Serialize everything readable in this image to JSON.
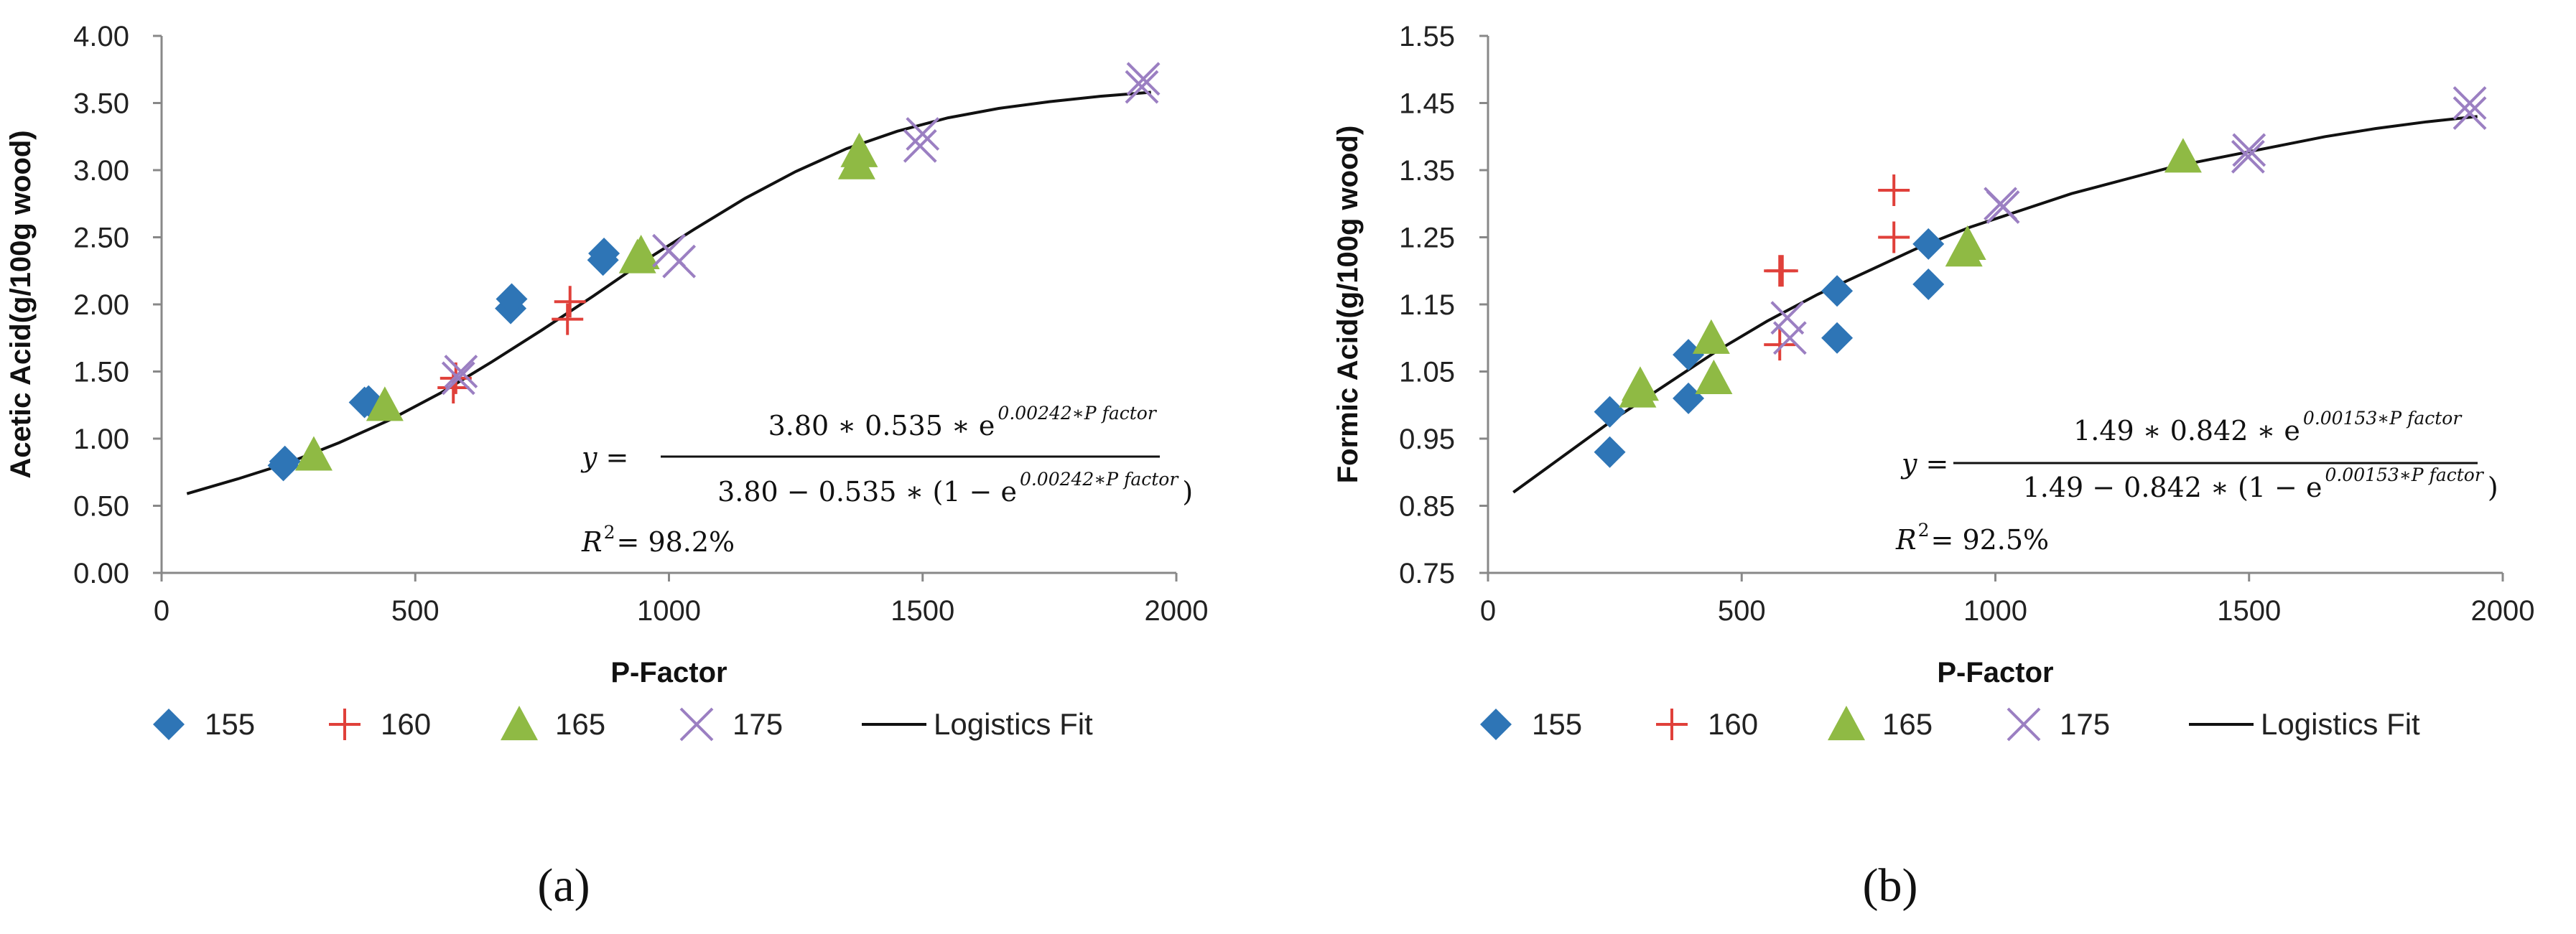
{
  "chart_data": [
    {
      "type": "scatter",
      "panel_label": "(a)",
      "xlabel": "P-Factor",
      "ylabel": "Acetic Acid(g/100g wood)",
      "xlim": [
        0,
        2000
      ],
      "ylim": [
        0,
        4
      ],
      "xticks": [
        0,
        500,
        1000,
        1500,
        2000
      ],
      "xtick_labels": [
        "0",
        "500",
        "1000",
        "1500",
        "2000"
      ],
      "yticks": [
        0,
        0.5,
        1,
        1.5,
        2,
        2.5,
        3,
        3.5,
        4
      ],
      "ytick_labels": [
        "0.00",
        "0.50",
        "1.00",
        "1.50",
        "2.00",
        "2.50",
        "3.00",
        "3.50",
        "4.00"
      ],
      "grid": false,
      "legend_position": "bottom",
      "series": [
        {
          "name": "155",
          "marker": "diamond",
          "color": "#2E75B6",
          "points": [
            [
              240,
              0.8
            ],
            [
              243,
              0.83
            ],
            [
              400,
              1.27
            ],
            [
              408,
              1.28
            ],
            [
              688,
              1.97
            ],
            [
              690,
              2.04
            ],
            [
              870,
              2.33
            ],
            [
              872,
              2.38
            ]
          ]
        },
        {
          "name": "160",
          "marker": "plus",
          "color": "#E0403A",
          "points": [
            [
              575,
              1.38
            ],
            [
              580,
              1.45
            ],
            [
              800,
              1.89
            ],
            [
              805,
              2.02
            ]
          ]
        },
        {
          "name": "165",
          "marker": "triangle",
          "color": "#8FBA44",
          "points": [
            [
              300,
              0.88
            ],
            [
              440,
              1.25
            ],
            [
              938,
              2.35
            ],
            [
              945,
              2.38
            ],
            [
              1370,
              3.05
            ],
            [
              1375,
              3.14
            ]
          ]
        },
        {
          "name": "175",
          "marker": "cross",
          "color": "#9B7FC2",
          "points": [
            [
              585,
              1.45
            ],
            [
              590,
              1.5
            ],
            [
              1000,
              2.4
            ],
            [
              1020,
              2.32
            ],
            [
              1495,
              3.18
            ],
            [
              1500,
              3.27
            ],
            [
              1932,
              3.62
            ],
            [
              1935,
              3.68
            ]
          ]
        }
      ],
      "fit": {
        "name": "Logistics Fit",
        "color": "#111111",
        "x": [
          50,
          150,
          250,
          350,
          450,
          550,
          650,
          750,
          850,
          950,
          1050,
          1150,
          1250,
          1350,
          1450,
          1550,
          1650,
          1750,
          1850,
          1950
        ],
        "y": [
          0.59,
          0.7,
          0.82,
          0.97,
          1.14,
          1.34,
          1.57,
          1.81,
          2.06,
          2.32,
          2.56,
          2.79,
          2.99,
          3.16,
          3.29,
          3.39,
          3.46,
          3.51,
          3.55,
          3.58
        ]
      },
      "equation": {
        "lhs": "y =",
        "numerator": "3.80 ∗ 0.535 ∗ e",
        "numerator_exp": "0.00242∗P factor",
        "denominator": "3.80 − 0.535 ∗ (1 − e",
        "denominator_exp": "0.00242∗P factor",
        "denominator_close": ")",
        "r2_label": "R",
        "r2_sup": "2",
        "r2_value": " = 98.2%"
      }
    },
    {
      "type": "scatter",
      "panel_label": "(b)",
      "xlabel": "P-Factor",
      "ylabel": "Formic Acid(g/100g wood)",
      "xlim": [
        0,
        2000
      ],
      "ylim": [
        0.75,
        1.55
      ],
      "xticks": [
        0,
        500,
        1000,
        1500,
        2000
      ],
      "xtick_labels": [
        "0",
        "500",
        "1000",
        "1500",
        "2000"
      ],
      "yticks": [
        0.75,
        0.85,
        0.95,
        1.05,
        1.15,
        1.25,
        1.35,
        1.45,
        1.55
      ],
      "ytick_labels": [
        "0.75",
        "0.85",
        "0.95",
        "1.05",
        "1.15",
        "1.25",
        "1.35",
        "1.45",
        "1.55"
      ],
      "grid": false,
      "legend_position": "bottom",
      "series": [
        {
          "name": "155",
          "marker": "diamond",
          "color": "#2E75B6",
          "points": [
            [
              240,
              0.99
            ],
            [
              240,
              0.93
            ],
            [
              395,
              1.075
            ],
            [
              395,
              1.01
            ],
            [
              688,
              1.17
            ],
            [
              688,
              1.1
            ],
            [
              868,
              1.24
            ],
            [
              868,
              1.18
            ]
          ]
        },
        {
          "name": "160",
          "marker": "plus",
          "color": "#E0403A",
          "points": [
            [
              575,
              1.2
            ],
            [
              580,
              1.2
            ],
            [
              575,
              1.09
            ],
            [
              800,
              1.32
            ],
            [
              800,
              1.25
            ]
          ]
        },
        {
          "name": "165",
          "marker": "triangle",
          "color": "#8FBA44",
          "points": [
            [
              295,
              1.02
            ],
            [
              300,
              1.03
            ],
            [
              440,
              1.1
            ],
            [
              445,
              1.04
            ],
            [
              938,
              1.23
            ],
            [
              945,
              1.24
            ],
            [
              1370,
              1.37
            ]
          ]
        },
        {
          "name": "175",
          "marker": "cross",
          "color": "#9B7FC2",
          "points": [
            [
              590,
              1.13
            ],
            [
              595,
              1.1
            ],
            [
              1010,
              1.3
            ],
            [
              1015,
              1.295
            ],
            [
              1498,
              1.37
            ],
            [
              1500,
              1.38
            ],
            [
              1935,
              1.45
            ],
            [
              1935,
              1.435
            ]
          ]
        }
      ],
      "fit": {
        "name": "Logistics Fit",
        "color": "#111111",
        "x": [
          50,
          150,
          250,
          350,
          450,
          550,
          650,
          750,
          850,
          950,
          1050,
          1150,
          1250,
          1350,
          1450,
          1550,
          1650,
          1750,
          1850,
          1950
        ],
        "y": [
          0.87,
          0.925,
          0.98,
          1.03,
          1.08,
          1.125,
          1.165,
          1.2,
          1.235,
          1.265,
          1.29,
          1.315,
          1.335,
          1.355,
          1.37,
          1.385,
          1.4,
          1.412,
          1.422,
          1.43
        ]
      },
      "equation": {
        "lhs": "y =",
        "numerator": "1.49 ∗ 0.842 ∗ e",
        "numerator_exp": "0.00153∗P factor",
        "denominator": "1.49 − 0.842 ∗ (1 − e",
        "denominator_exp": "0.00153∗P factor",
        "denominator_close": ")",
        "r2_label": "R",
        "r2_sup": "2",
        "r2_value": " = 92.5%"
      }
    }
  ]
}
